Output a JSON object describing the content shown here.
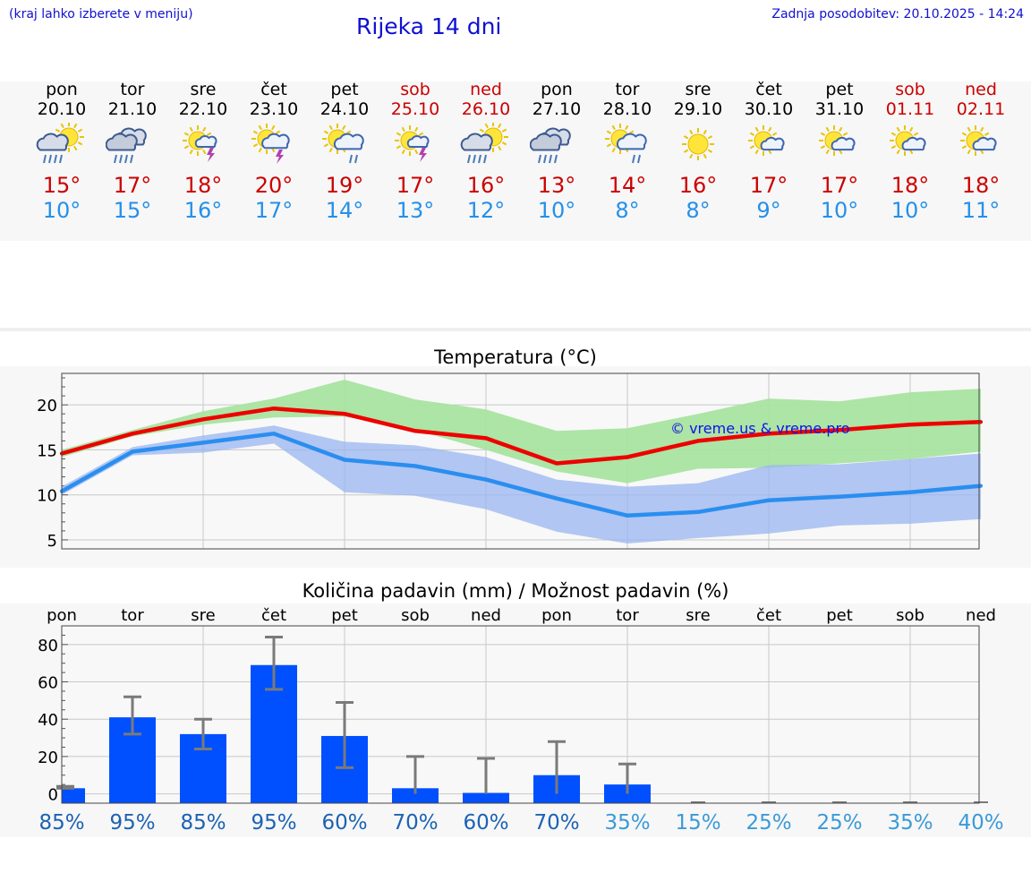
{
  "header": {
    "left_note": "(kraj lahko izberete v meniju)",
    "title": "Rijeka 14 dni",
    "updated": "Zadnja posodobitev: 20.10.2025 - 14:24"
  },
  "days": [
    {
      "day": "pon",
      "date": "20.10",
      "icon": "sun-cloud-rain-icon",
      "max": "15°",
      "min": "10°",
      "weekend": false
    },
    {
      "day": "tor",
      "date": "21.10",
      "icon": "cloud-rain-icon",
      "max": "17°",
      "min": "15°",
      "weekend": false
    },
    {
      "day": "sre",
      "date": "22.10",
      "icon": "sun-thunder-icon",
      "max": "18°",
      "min": "16°",
      "weekend": false
    },
    {
      "day": "čet",
      "date": "23.10",
      "icon": "sun-cloud-thunder-icon",
      "max": "20°",
      "min": "17°",
      "weekend": false
    },
    {
      "day": "pet",
      "date": "24.10",
      "icon": "sun-cloud-showers-icon",
      "max": "19°",
      "min": "14°",
      "weekend": false
    },
    {
      "day": "sob",
      "date": "25.10",
      "icon": "sun-thunder-icon",
      "max": "17°",
      "min": "13°",
      "weekend": true
    },
    {
      "day": "ned",
      "date": "26.10",
      "icon": "sun-cloud-rain-icon",
      "max": "16°",
      "min": "12°",
      "weekend": true
    },
    {
      "day": "pon",
      "date": "27.10",
      "icon": "cloud-rain-icon",
      "max": "13°",
      "min": "10°",
      "weekend": false
    },
    {
      "day": "tor",
      "date": "28.10",
      "icon": "sun-cloud-showers-icon",
      "max": "14°",
      "min": "8°",
      "weekend": false
    },
    {
      "day": "sre",
      "date": "29.10",
      "icon": "sun-icon",
      "max": "16°",
      "min": "8°",
      "weekend": false
    },
    {
      "day": "čet",
      "date": "30.10",
      "icon": "sun-small-cloud-icon",
      "max": "17°",
      "min": "9°",
      "weekend": false
    },
    {
      "day": "pet",
      "date": "31.10",
      "icon": "sun-small-cloud-icon",
      "max": "17°",
      "min": "10°",
      "weekend": false
    },
    {
      "day": "sob",
      "date": "01.11",
      "icon": "sun-small-cloud-icon",
      "max": "18°",
      "min": "10°",
      "weekend": true
    },
    {
      "day": "ned",
      "date": "02.11",
      "icon": "sun-small-cloud-icon",
      "max": "18°",
      "min": "11°",
      "weekend": true
    }
  ],
  "colors": {
    "max_line": "#ee0000",
    "min_line": "#2a8ef0",
    "max_band": "#a8e4a0",
    "min_band": "#9ab6f0",
    "bar": "#0050ff",
    "error": "#7a7a7a",
    "watermark": "#1010ee",
    "pct_high": "#1b62b4",
    "pct_low": "#3a9ad8"
  },
  "chart_data": [
    {
      "type": "line",
      "title": "Temperatura (°C)",
      "annotation": "© vreme.us & vreme.pro",
      "x": [
        "20.10",
        "21.10",
        "22.10",
        "23.10",
        "24.10",
        "25.10",
        "26.10",
        "27.10",
        "28.10",
        "29.10",
        "30.10",
        "31.10",
        "01.11",
        "02.11"
      ],
      "ylim": [
        4,
        23.5
      ],
      "yticks": [
        5,
        10,
        15,
        20
      ],
      "grid": true,
      "series": [
        {
          "key": "max",
          "values": [
            14.6,
            16.8,
            18.4,
            19.6,
            19.0,
            17.1,
            16.3,
            13.5,
            14.2,
            16.0,
            16.8,
            17.2,
            17.8,
            18.1
          ],
          "band_low": [
            14.2,
            16.5,
            17.8,
            18.6,
            18.7,
            17.2,
            15.0,
            12.6,
            11.3,
            12.9,
            13.0,
            13.5,
            14.0,
            14.8
          ],
          "band_high": [
            15.0,
            17.2,
            19.3,
            20.7,
            22.8,
            20.6,
            19.5,
            17.1,
            17.4,
            19.0,
            20.7,
            20.4,
            21.4,
            21.8
          ]
        },
        {
          "key": "min",
          "values": [
            10.4,
            14.8,
            15.8,
            16.8,
            13.9,
            13.2,
            11.7,
            9.6,
            7.7,
            8.1,
            9.4,
            9.8,
            10.3,
            11.0
          ],
          "band_low": [
            10.0,
            14.4,
            14.7,
            15.7,
            10.3,
            9.9,
            8.4,
            5.9,
            4.6,
            5.2,
            5.7,
            6.6,
            6.8,
            7.3
          ],
          "band_high": [
            10.9,
            15.3,
            16.6,
            17.7,
            15.9,
            15.5,
            14.2,
            11.7,
            10.9,
            11.3,
            13.3,
            13.4,
            14.0,
            14.6
          ]
        }
      ]
    },
    {
      "type": "bar",
      "title": "Količina padavin (mm) / Možnost padavin (%)",
      "categories": [
        "pon",
        "tor",
        "sre",
        "čet",
        "pet",
        "sob",
        "ned",
        "pon",
        "tor",
        "sre",
        "čet",
        "pet",
        "sob",
        "ned"
      ],
      "ylim": [
        -5,
        90
      ],
      "yticks": [
        0,
        20,
        40,
        60,
        80
      ],
      "grid": true,
      "values": [
        3,
        41,
        32,
        69,
        31,
        3,
        0.5,
        10,
        5,
        0,
        0,
        0,
        0,
        0
      ],
      "error_low": [
        3,
        32,
        24,
        56,
        14,
        0,
        0,
        0,
        0,
        0,
        0,
        0,
        0,
        0
      ],
      "error_high": [
        4,
        52,
        40,
        84,
        49,
        20,
        19,
        28,
        16,
        0,
        0,
        0,
        0,
        0
      ],
      "probability": [
        "85%",
        "95%",
        "85%",
        "95%",
        "60%",
        "70%",
        "60%",
        "70%",
        "35%",
        "15%",
        "25%",
        "25%",
        "35%",
        "40%"
      ]
    }
  ]
}
